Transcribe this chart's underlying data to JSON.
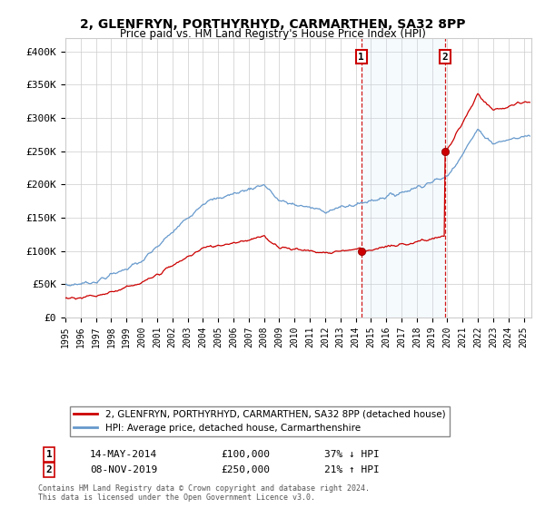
{
  "title": "2, GLENFRYN, PORTHYRHYD, CARMARTHEN, SA32 8PP",
  "subtitle": "Price paid vs. HM Land Registry's House Price Index (HPI)",
  "legend_entry1": "2, GLENFRYN, PORTHYRHYD, CARMARTHEN, SA32 8PP (detached house)",
  "legend_entry2": "HPI: Average price, detached house, Carmarthenshire",
  "annotation1_label": "1",
  "annotation1_date": "14-MAY-2014",
  "annotation1_price": "£100,000",
  "annotation1_hpi": "37% ↓ HPI",
  "annotation1_year": 2014.37,
  "annotation1_value": 100000,
  "annotation2_label": "2",
  "annotation2_date": "08-NOV-2019",
  "annotation2_price": "£250,000",
  "annotation2_hpi": "21% ↑ HPI",
  "annotation2_year": 2019.85,
  "annotation2_value": 250000,
  "footnote": "Contains HM Land Registry data © Crown copyright and database right 2024.\nThis data is licensed under the Open Government Licence v3.0.",
  "hpi_color": "#6699cc",
  "price_color": "#cc0000",
  "dot_color": "#cc0000",
  "vline_color": "#cc0000",
  "background_color": "#ffffff",
  "grid_color": "#cccccc",
  "highlight_color": "#ddeeff",
  "ylim": [
    0,
    420000
  ],
  "xlim_start": 1995.0,
  "xlim_end": 2025.5
}
